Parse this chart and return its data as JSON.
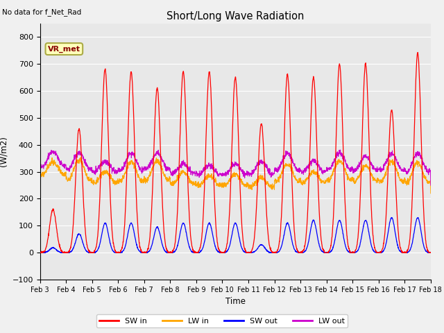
{
  "title": "Short/Long Wave Radiation",
  "xlabel": "Time",
  "ylabel": "(W/m2)",
  "no_data_text": "No data for f_Net_Rad",
  "station_label": "VR_met",
  "ylim": [
    -100,
    850
  ],
  "yticks": [
    -100,
    0,
    100,
    200,
    300,
    400,
    500,
    600,
    700,
    800
  ],
  "n_days": 15,
  "colors": {
    "SW_in": "#ff0000",
    "LW_in": "#ffa500",
    "SW_out": "#0000ff",
    "LW_out": "#cc00cc",
    "background": "#e8e8e8",
    "fig_bg": "#f0f0f0"
  },
  "legend_labels": [
    "SW in",
    "LW in",
    "SW out",
    "LW out"
  ],
  "SW_in_peaks": [
    160,
    460,
    680,
    670,
    610,
    670,
    670,
    650,
    480,
    660,
    650,
    700,
    700,
    530,
    740
  ],
  "SW_out_peaks": [
    18,
    70,
    110,
    110,
    95,
    110,
    110,
    110,
    30,
    110,
    120,
    120,
    120,
    130,
    130
  ],
  "LW_in_day": [
    380,
    420,
    340,
    410,
    410,
    340,
    320,
    330,
    310,
    390,
    340,
    410,
    380,
    410,
    410
  ],
  "LW_in_night": [
    290,
    270,
    260,
    265,
    270,
    255,
    250,
    250,
    245,
    265,
    260,
    270,
    265,
    265,
    260
  ],
  "LW_out_day": [
    420,
    420,
    370,
    420,
    420,
    360,
    350,
    360,
    380,
    420,
    370,
    420,
    400,
    420,
    420
  ],
  "LW_out_night": [
    320,
    310,
    300,
    305,
    310,
    295,
    290,
    290,
    290,
    305,
    300,
    310,
    305,
    305,
    300
  ]
}
